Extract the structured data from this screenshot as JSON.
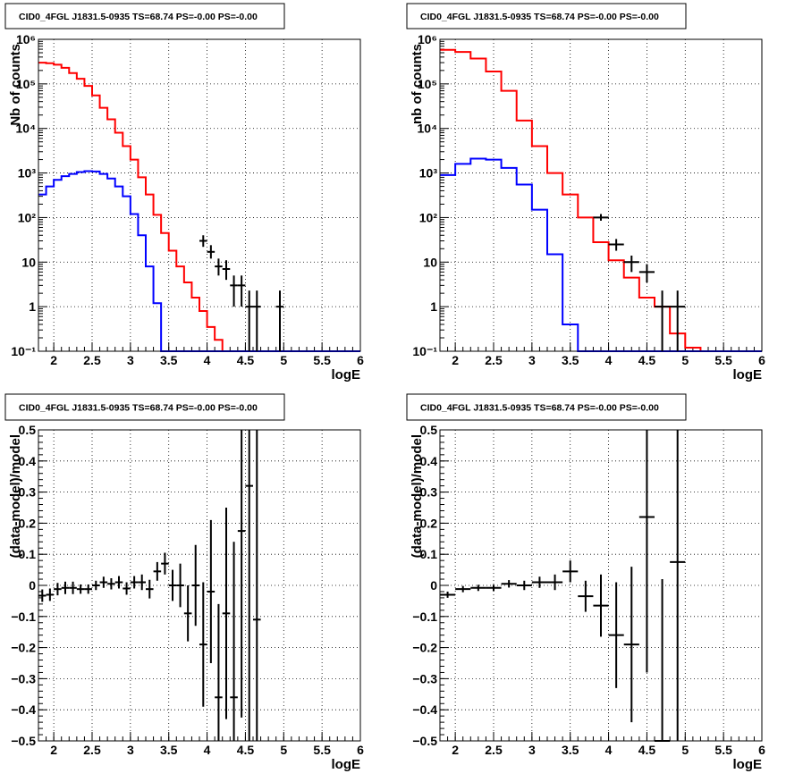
{
  "chart_data": [
    {
      "type": "step-line",
      "title": "CID0_4FGL J1831.5-0935 TS=68.74 PS=-0.00 PS=-0.00",
      "xlabel": "logE",
      "ylabel": "Nb of counts",
      "xlim": [
        1.8,
        6
      ],
      "ylim": [
        0.1,
        1000000
      ],
      "yscale": "log",
      "grid": true,
      "x_ticks": [
        "2",
        "2.5",
        "3",
        "3.5",
        "4",
        "4.5",
        "5",
        "5.5",
        "6"
      ],
      "y_ticks": [
        "10⁻¹",
        "1",
        "10",
        "10²",
        "10³",
        "10⁴",
        "10⁵",
        "10⁶"
      ],
      "bin_width": 0.1,
      "series": [
        {
          "color": "#ff0000",
          "style": "step",
          "x_start": 1.8,
          "values": [
            300000,
            290000,
            270000,
            230000,
            175000,
            130000,
            90000,
            55000,
            29000,
            16000,
            8000,
            4000,
            2000,
            800,
            330,
            115,
            45,
            18,
            8,
            3.5,
            1.6,
            0.8,
            0.35,
            0.18,
            0.1
          ]
        },
        {
          "color": "#0000ff",
          "style": "step",
          "x_start": 1.8,
          "values": [
            330,
            500,
            700,
            850,
            950,
            1050,
            1100,
            1080,
            950,
            750,
            500,
            300,
            120,
            40,
            8,
            1.2,
            0.08
          ]
        },
        {
          "color": "#000000",
          "style": "errorbar",
          "points": [
            {
              "x": 3.95,
              "y": 30,
              "ylo": 22,
              "yhi": 40
            },
            {
              "x": 4.05,
              "y": 17,
              "ylo": 12,
              "yhi": 24
            },
            {
              "x": 4.15,
              "y": 8,
              "ylo": 5,
              "yhi": 12
            },
            {
              "x": 4.25,
              "y": 7,
              "ylo": 4,
              "yhi": 11
            },
            {
              "x": 4.35,
              "y": 3,
              "ylo": 1,
              "yhi": 5
            },
            {
              "x": 4.45,
              "y": 3,
              "ylo": 1,
              "yhi": 5
            },
            {
              "x": 4.55,
              "y": 1,
              "ylo": 0.1,
              "yhi": 2.3
            },
            {
              "x": 4.65,
              "y": 1,
              "ylo": 0.1,
              "yhi": 2.3
            },
            {
              "x": 4.95,
              "y": 1,
              "ylo": 0.1,
              "yhi": 2.3
            }
          ]
        }
      ]
    },
    {
      "type": "step-line",
      "title": "CID0_4FGL J1831.5-0935 TS=68.74 PS=-0.00 PS=-0.00",
      "xlabel": "logE",
      "ylabel": "nb of counts",
      "xlim": [
        1.8,
        6
      ],
      "ylim": [
        0.1,
        1000000
      ],
      "yscale": "log",
      "grid": true,
      "x_ticks": [
        "2",
        "2.5",
        "3",
        "3.5",
        "4",
        "4.5",
        "5",
        "5.5",
        "6"
      ],
      "y_ticks": [
        "10⁻¹",
        "1",
        "10",
        "10²",
        "10³",
        "10⁴",
        "10⁵",
        "10⁶"
      ],
      "bin_width": 0.2,
      "series": [
        {
          "color": "#ff0000",
          "style": "step",
          "x_start": 1.8,
          "values": [
            580000,
            520000,
            370000,
            190000,
            70000,
            15000,
            4000,
            1000,
            330,
            100,
            28,
            11,
            4.5,
            1.6,
            1,
            0.25,
            0.12
          ]
        },
        {
          "color": "#0000ff",
          "style": "step",
          "x_start": 1.8,
          "values": [
            900,
            1600,
            2100,
            2000,
            1300,
            550,
            150,
            15,
            0.4,
            0.08
          ]
        },
        {
          "color": "#000000",
          "style": "errorbar",
          "points": [
            {
              "x": 3.9,
              "y": 100,
              "ylo": 85,
              "yhi": 120
            },
            {
              "x": 4.1,
              "y": 25,
              "ylo": 18,
              "yhi": 33
            },
            {
              "x": 4.3,
              "y": 10,
              "ylo": 6,
              "yhi": 14
            },
            {
              "x": 4.5,
              "y": 6,
              "ylo": 3.5,
              "yhi": 9
            },
            {
              "x": 4.7,
              "y": 1,
              "ylo": 0.1,
              "yhi": 2.3
            },
            {
              "x": 4.9,
              "y": 1,
              "ylo": 0.1,
              "yhi": 2.3
            }
          ]
        }
      ]
    },
    {
      "type": "scatter",
      "title": "CID0_4FGL J1831.5-0935 TS=68.74 PS=-0.00 PS=-0.00",
      "xlabel": "logE",
      "ylabel": "(data-model)/model",
      "xlim": [
        1.8,
        6
      ],
      "ylim": [
        -0.5,
        0.5
      ],
      "yscale": "linear",
      "grid": true,
      "x_ticks": [
        "2",
        "2.5",
        "3",
        "3.5",
        "4",
        "4.5",
        "5",
        "5.5",
        "6"
      ],
      "y_ticks": [
        "−0.5",
        "−0.4",
        "−0.3",
        "−0.2",
        "−0.1",
        "0",
        "0.1",
        "0.2",
        "0.3",
        "0.4",
        "0.5"
      ],
      "y_tick_values": [
        -0.5,
        -0.4,
        -0.3,
        -0.2,
        -0.1,
        0,
        0.1,
        0.2,
        0.3,
        0.4,
        0.5
      ],
      "x_halfwidth": 0.05,
      "points": [
        {
          "x": 1.85,
          "y": -0.033,
          "err": 0.02
        },
        {
          "x": 1.95,
          "y": -0.03,
          "err": 0.02
        },
        {
          "x": 2.05,
          "y": -0.012,
          "err": 0.02
        },
        {
          "x": 2.15,
          "y": -0.008,
          "err": 0.02
        },
        {
          "x": 2.25,
          "y": -0.008,
          "err": 0.02
        },
        {
          "x": 2.35,
          "y": -0.012,
          "err": 0.015
        },
        {
          "x": 2.45,
          "y": -0.012,
          "err": 0.015
        },
        {
          "x": 2.55,
          "y": 0.0,
          "err": 0.015
        },
        {
          "x": 2.65,
          "y": 0.01,
          "err": 0.018
        },
        {
          "x": 2.75,
          "y": 0.005,
          "err": 0.018
        },
        {
          "x": 2.85,
          "y": 0.01,
          "err": 0.02
        },
        {
          "x": 2.95,
          "y": -0.01,
          "err": 0.02
        },
        {
          "x": 3.05,
          "y": 0.01,
          "err": 0.02
        },
        {
          "x": 3.15,
          "y": 0.01,
          "err": 0.025
        },
        {
          "x": 3.25,
          "y": -0.012,
          "err": 0.03
        },
        {
          "x": 3.35,
          "y": 0.045,
          "err": 0.03
        },
        {
          "x": 3.45,
          "y": 0.07,
          "err": 0.035
        },
        {
          "x": 3.55,
          "y": 0.0,
          "err": 0.05
        },
        {
          "x": 3.65,
          "y": 0.0,
          "err": 0.07
        },
        {
          "x": 3.75,
          "y": -0.09,
          "err": 0.09
        },
        {
          "x": 3.85,
          "y": 0.0,
          "err": 0.13
        },
        {
          "x": 3.95,
          "y": -0.19,
          "err": 0.2
        },
        {
          "x": 4.05,
          "y": -0.02,
          "err": 0.23
        },
        {
          "x": 4.15,
          "y": -0.36,
          "err": 0.3
        },
        {
          "x": 4.25,
          "y": -0.09,
          "err": 0.34
        },
        {
          "x": 4.35,
          "y": -0.36,
          "err": 0.5
        },
        {
          "x": 4.45,
          "y": 0.175,
          "err": 0.6
        },
        {
          "x": 4.55,
          "y": 0.32,
          "err": 1.0
        },
        {
          "x": 4.65,
          "y": -0.11,
          "err": 1.0
        }
      ]
    },
    {
      "type": "scatter",
      "title": "CID0_4FGL J1831.5-0935 TS=68.74 PS=-0.00 PS=-0.00",
      "xlabel": "logE",
      "ylabel": "(data-model)/model",
      "xlim": [
        1.8,
        6
      ],
      "ylim": [
        -0.5,
        0.5
      ],
      "yscale": "linear",
      "grid": true,
      "x_ticks": [
        "2",
        "2.5",
        "3",
        "3.5",
        "4",
        "4.5",
        "5",
        "5.5",
        "6"
      ],
      "y_ticks": [
        "−0.5",
        "−0.4",
        "−0.3",
        "−0.2",
        "−0.1",
        "0",
        "0.1",
        "0.2",
        "0.3",
        "0.4",
        "0.5"
      ],
      "y_tick_values": [
        -0.5,
        -0.4,
        -0.3,
        -0.2,
        -0.1,
        0,
        0.1,
        0.2,
        0.3,
        0.4,
        0.5
      ],
      "x_halfwidth": 0.1,
      "points": [
        {
          "x": 1.9,
          "y": -0.03,
          "err": 0.01
        },
        {
          "x": 2.1,
          "y": -0.012,
          "err": 0.01
        },
        {
          "x": 2.3,
          "y": -0.008,
          "err": 0.01
        },
        {
          "x": 2.5,
          "y": -0.008,
          "err": 0.01
        },
        {
          "x": 2.7,
          "y": 0.005,
          "err": 0.012
        },
        {
          "x": 2.9,
          "y": 0.0,
          "err": 0.015
        },
        {
          "x": 3.1,
          "y": 0.01,
          "err": 0.018
        },
        {
          "x": 3.3,
          "y": 0.01,
          "err": 0.025
        },
        {
          "x": 3.5,
          "y": 0.045,
          "err": 0.035
        },
        {
          "x": 3.7,
          "y": -0.035,
          "err": 0.05
        },
        {
          "x": 3.9,
          "y": -0.065,
          "err": 0.1
        },
        {
          "x": 4.1,
          "y": -0.16,
          "err": 0.17
        },
        {
          "x": 4.3,
          "y": -0.19,
          "err": 0.25
        },
        {
          "x": 4.5,
          "y": 0.22,
          "err": 0.5
        },
        {
          "x": 4.7,
          "y": -0.5,
          "err": 0.52
        },
        {
          "x": 4.9,
          "y": 0.075,
          "err": 0.6
        }
      ]
    }
  ]
}
